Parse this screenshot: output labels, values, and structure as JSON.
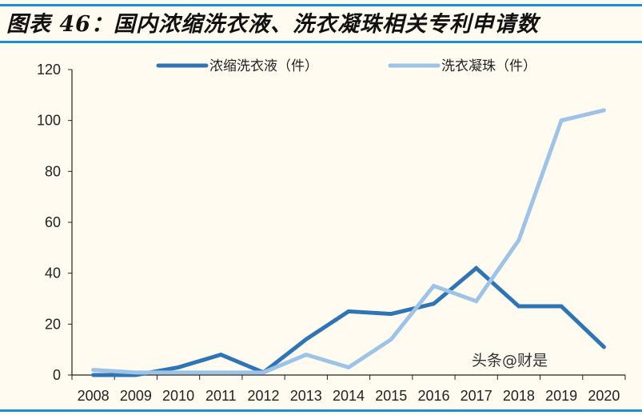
{
  "title": "图表 46：国内浓缩洗衣液、洗衣凝珠相关专利申请数",
  "watermark": "头条@财是",
  "chart_data": {
    "type": "line",
    "title": "图表 46：国内浓缩洗衣液、洗衣凝珠相关专利申请数",
    "categories": [
      "2008",
      "2009",
      "2010",
      "2011",
      "2012",
      "2013",
      "2014",
      "2015",
      "2016",
      "2017",
      "2018",
      "2019",
      "2020"
    ],
    "ylim": [
      0,
      120
    ],
    "yticks": [
      0,
      20,
      40,
      60,
      80,
      100,
      120
    ],
    "grid": false,
    "legend": "top",
    "series": [
      {
        "name": "浓缩洗衣液（件）",
        "color": "#2e75b6",
        "values": [
          0,
          0,
          3,
          8,
          1,
          14,
          25,
          24,
          28,
          42,
          27,
          27,
          11
        ]
      },
      {
        "name": "洗衣凝珠（件）",
        "color": "#9dc3e6",
        "values": [
          2,
          1,
          1,
          1,
          1,
          8,
          3,
          14,
          35,
          29,
          53,
          100,
          104
        ]
      }
    ]
  }
}
